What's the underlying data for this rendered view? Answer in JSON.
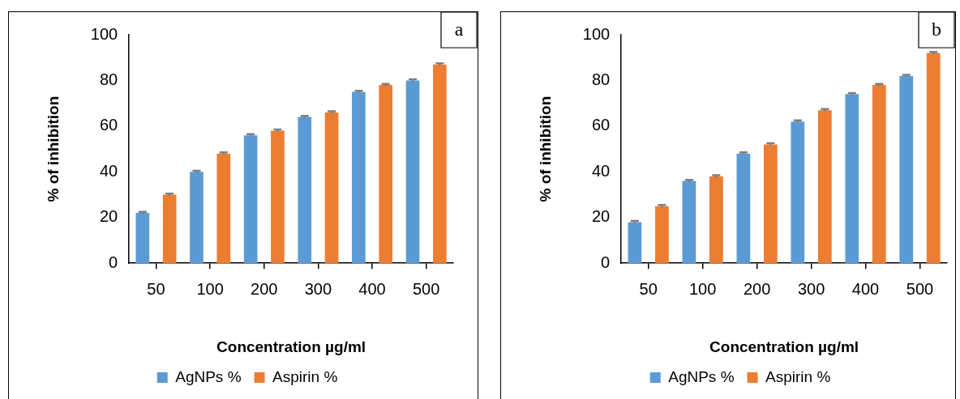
{
  "chart_data": [
    {
      "type": "bar",
      "xlabel": "Concentration µg/ml",
      "ylabel": "% of inhibition",
      "annotations": [
        "a"
      ],
      "categories": [
        "50",
        "100",
        "200",
        "300",
        "400",
        "500"
      ],
      "ylim": [
        0,
        100
      ],
      "yticks": [
        0,
        20,
        40,
        60,
        80,
        100
      ],
      "grid": false,
      "legend": "bottom",
      "series": [
        {
          "name": "AgNPs %",
          "color": "#5b9bd5",
          "values": [
            22,
            40,
            56,
            64,
            75,
            80
          ],
          "errors": [
            0.5,
            0.5,
            0.5,
            0.5,
            0.5,
            0.5
          ]
        },
        {
          "name": "Aspirin %",
          "color": "#ed7d31",
          "values": [
            30,
            48,
            58,
            66,
            78,
            87
          ],
          "errors": [
            0.5,
            0.5,
            0.5,
            0.5,
            0.5,
            0.5
          ]
        }
      ]
    },
    {
      "type": "bar",
      "xlabel": "Concentration µg/ml",
      "ylabel": "% of inhibition",
      "annotations": [
        "b"
      ],
      "categories": [
        "50",
        "100",
        "200",
        "300",
        "400",
        "500"
      ],
      "ylim": [
        0,
        100
      ],
      "yticks": [
        0,
        20,
        40,
        60,
        80,
        100
      ],
      "grid": false,
      "legend": "bottom",
      "series": [
        {
          "name": "AgNPs %",
          "color": "#5b9bd5",
          "values": [
            18,
            36,
            48,
            62,
            74,
            82
          ],
          "errors": [
            0.5,
            0.5,
            0.5,
            0.5,
            0.5,
            0.5
          ]
        },
        {
          "name": "Aspirin %",
          "color": "#ed7d31",
          "values": [
            25,
            38,
            52,
            67,
            78,
            92
          ],
          "errors": [
            0.5,
            0.5,
            0.5,
            0.5,
            0.5,
            0.5
          ]
        }
      ]
    }
  ]
}
